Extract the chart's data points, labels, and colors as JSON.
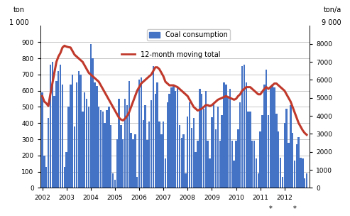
{
  "title": "Coal consumption",
  "legend_line": "12-month moving total",
  "bar_color": "#4472c4",
  "line_color": "#c0392b",
  "background_color": "#ffffff",
  "grid_color": "#b0b0b0",
  "start_year": 2002,
  "bar_data": [
    590,
    200,
    130,
    430,
    760,
    780,
    570,
    660,
    720,
    760,
    640,
    130,
    220,
    500,
    640,
    700,
    380,
    650,
    720,
    700,
    470,
    590,
    550,
    500,
    890,
    800,
    650,
    630,
    500,
    480,
    470,
    400,
    480,
    500,
    390,
    90,
    50,
    300,
    550,
    390,
    300,
    550,
    510,
    660,
    340,
    300,
    330,
    70,
    670,
    680,
    420,
    510,
    295,
    410,
    540,
    750,
    580,
    650,
    410,
    330,
    410,
    180,
    530,
    580,
    620,
    640,
    600,
    620,
    390,
    310,
    330,
    90,
    440,
    530,
    370,
    430,
    220,
    290,
    610,
    580,
    490,
    600,
    290,
    180,
    435,
    520,
    360,
    500,
    290,
    450,
    650,
    640,
    560,
    610,
    290,
    170,
    290,
    360,
    530,
    750,
    760,
    650,
    470,
    470,
    290,
    290,
    180,
    90,
    350,
    450,
    640,
    730,
    450,
    630,
    640,
    620,
    460,
    350,
    185,
    70,
    400,
    490,
    280,
    510,
    340,
    170,
    270,
    315,
    185,
    180,
    60,
    90
  ],
  "moving_total": [
    5100,
    4800,
    4700,
    4550,
    5200,
    5800,
    6400,
    7000,
    7300,
    7500,
    7800,
    7900,
    7850,
    7820,
    7800,
    7600,
    7400,
    7300,
    7200,
    7100,
    7000,
    6800,
    6600,
    6400,
    6300,
    6200,
    6100,
    6000,
    5900,
    5700,
    5500,
    5300,
    5100,
    4900,
    4700,
    4500,
    4300,
    4100,
    3900,
    3800,
    3750,
    3850,
    4000,
    4200,
    4500,
    4800,
    5100,
    5400,
    5600,
    5800,
    5900,
    6000,
    6100,
    6200,
    6300,
    6500,
    6700,
    6700,
    6600,
    6400,
    6200,
    5900,
    5800,
    5700,
    5700,
    5700,
    5650,
    5600,
    5500,
    5400,
    5300,
    5200,
    5100,
    4900,
    4700,
    4500,
    4400,
    4300,
    4350,
    4400,
    4500,
    4600,
    4600,
    4550,
    4600,
    4700,
    4800,
    4900,
    4950,
    5000,
    5050,
    5100,
    5050,
    5000,
    4950,
    4900,
    4950,
    5100,
    5200,
    5400,
    5500,
    5600,
    5600,
    5600,
    5500,
    5400,
    5300,
    5200,
    5200,
    5350,
    5500,
    5600,
    5500,
    5600,
    5700,
    5800,
    5800,
    5700,
    5600,
    5500,
    5400,
    5200,
    5000,
    4800,
    4500,
    4200,
    3900,
    3600,
    3400,
    3200,
    3050,
    2950
  ],
  "year_labels": [
    "2002",
    "2003",
    "2004",
    "2005",
    "2006",
    "2007",
    "2008",
    "2009",
    "2010",
    "2011",
    "2012"
  ],
  "yticks_left": [
    0,
    100,
    200,
    300,
    400,
    500,
    600,
    700,
    800,
    900
  ],
  "yticks_right": [
    0,
    1000,
    2000,
    3000,
    4000,
    5000,
    6000,
    7000,
    8000
  ]
}
